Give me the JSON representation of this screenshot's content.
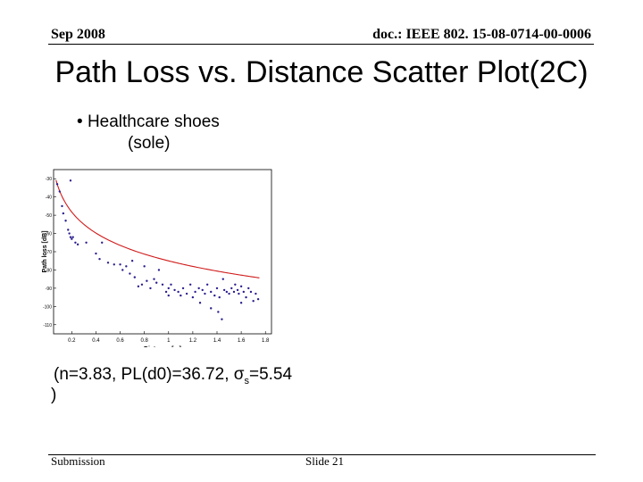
{
  "header": {
    "date": "Sep 2008",
    "doc": "doc.: IEEE 802. 15-08-0714-00-0006"
  },
  "title": "Path Loss vs. Distance Scatter Plot(2C)",
  "bullet": {
    "symbol": "•",
    "line1": "Healthcare shoes",
    "line2": "(sole)"
  },
  "stats": {
    "prefix": "(n=3.83, PL(d0)=36.72, σ",
    "sub": "s",
    "suffix": "=5.54",
    "close": ")"
  },
  "footer": {
    "left": "Submission",
    "slide": "Slide 21"
  },
  "colors": {
    "points": "#2a1f8f",
    "fit": "#d11a1a"
  },
  "chart_data": {
    "type": "scatter",
    "title": "",
    "xlabel": "Distance [m]",
    "ylabel": "Path loss [dB]",
    "xlim": [
      0.05,
      1.85
    ],
    "ylim": [
      -115,
      -25
    ],
    "xticks": [
      0.2,
      0.4,
      0.6,
      0.8,
      1,
      1.2,
      1.4,
      1.6,
      1.8
    ],
    "xtick_labels": [
      "0.2",
      "0.4",
      "0.6",
      "0.8",
      "1",
      "1.2",
      "1.4",
      "1.6",
      "1.8"
    ],
    "yticks": [
      -30,
      -40,
      -50,
      -60,
      -70,
      -80,
      -90,
      -100,
      -110
    ],
    "ytick_labels": [
      "-30",
      "-40",
      "-50",
      "-60",
      "-70",
      "-80",
      "-90",
      "-100",
      "-110"
    ],
    "grid": false,
    "fit": {
      "n": 3.83,
      "pl_d0": 36.72,
      "d0": 0.1,
      "sigma": 5.54
    },
    "points": [
      {
        "x": 0.08,
        "y": -33
      },
      {
        "x": 0.1,
        "y": -37
      },
      {
        "x": 0.12,
        "y": -45
      },
      {
        "x": 0.13,
        "y": -49
      },
      {
        "x": 0.15,
        "y": -53
      },
      {
        "x": 0.17,
        "y": -58
      },
      {
        "x": 0.18,
        "y": -60
      },
      {
        "x": 0.19,
        "y": -62
      },
      {
        "x": 0.2,
        "y": -63
      },
      {
        "x": 0.21,
        "y": -62
      },
      {
        "x": 0.23,
        "y": -65
      },
      {
        "x": 0.25,
        "y": -66
      },
      {
        "x": 0.19,
        "y": -31
      },
      {
        "x": 0.32,
        "y": -65
      },
      {
        "x": 0.45,
        "y": -65
      },
      {
        "x": 0.4,
        "y": -71
      },
      {
        "x": 0.43,
        "y": -74
      },
      {
        "x": 0.5,
        "y": -76
      },
      {
        "x": 0.55,
        "y": -77
      },
      {
        "x": 0.6,
        "y": -77
      },
      {
        "x": 0.62,
        "y": -80
      },
      {
        "x": 0.65,
        "y": -78
      },
      {
        "x": 0.68,
        "y": -82
      },
      {
        "x": 0.7,
        "y": -75
      },
      {
        "x": 0.72,
        "y": -84
      },
      {
        "x": 0.75,
        "y": -89
      },
      {
        "x": 0.78,
        "y": -88
      },
      {
        "x": 0.8,
        "y": -78
      },
      {
        "x": 0.82,
        "y": -86
      },
      {
        "x": 0.85,
        "y": -90
      },
      {
        "x": 0.88,
        "y": -85
      },
      {
        "x": 0.9,
        "y": -87
      },
      {
        "x": 0.92,
        "y": -80
      },
      {
        "x": 0.95,
        "y": -88
      },
      {
        "x": 0.98,
        "y": -92
      },
      {
        "x": 1,
        "y": -90
      },
      {
        "x": 1.02,
        "y": -88
      },
      {
        "x": 1.05,
        "y": -91
      },
      {
        "x": 1.08,
        "y": -92
      },
      {
        "x": 1.1,
        "y": -94
      },
      {
        "x": 1.12,
        "y": -90
      },
      {
        "x": 1.15,
        "y": -93
      },
      {
        "x": 1.18,
        "y": -88
      },
      {
        "x": 1.2,
        "y": -95
      },
      {
        "x": 1.22,
        "y": -92
      },
      {
        "x": 1.25,
        "y": -90
      },
      {
        "x": 1.28,
        "y": -91
      },
      {
        "x": 1.3,
        "y": -93
      },
      {
        "x": 1.32,
        "y": -88
      },
      {
        "x": 1.35,
        "y": -92
      },
      {
        "x": 1.38,
        "y": -94
      },
      {
        "x": 1.4,
        "y": -90
      },
      {
        "x": 1.42,
        "y": -95
      },
      {
        "x": 1.45,
        "y": -85
      },
      {
        "x": 1.46,
        "y": -91
      },
      {
        "x": 1.48,
        "y": -92
      },
      {
        "x": 1.5,
        "y": -93
      },
      {
        "x": 1.52,
        "y": -90
      },
      {
        "x": 1.54,
        "y": -92
      },
      {
        "x": 1.55,
        "y": -88
      },
      {
        "x": 1.57,
        "y": -91
      },
      {
        "x": 1.58,
        "y": -93
      },
      {
        "x": 1.6,
        "y": -89
      },
      {
        "x": 1.62,
        "y": -92
      },
      {
        "x": 1.64,
        "y": -95
      },
      {
        "x": 1.66,
        "y": -90
      },
      {
        "x": 1.68,
        "y": -92
      },
      {
        "x": 1.7,
        "y": -97
      },
      {
        "x": 1.72,
        "y": -93
      },
      {
        "x": 1.41,
        "y": -103
      },
      {
        "x": 1.44,
        "y": -107
      },
      {
        "x": 1.35,
        "y": -101
      },
      {
        "x": 1.26,
        "y": -98
      },
      {
        "x": 1.0,
        "y": -94
      },
      {
        "x": 1.6,
        "y": -98
      },
      {
        "x": 1.74,
        "y": -96
      }
    ]
  }
}
